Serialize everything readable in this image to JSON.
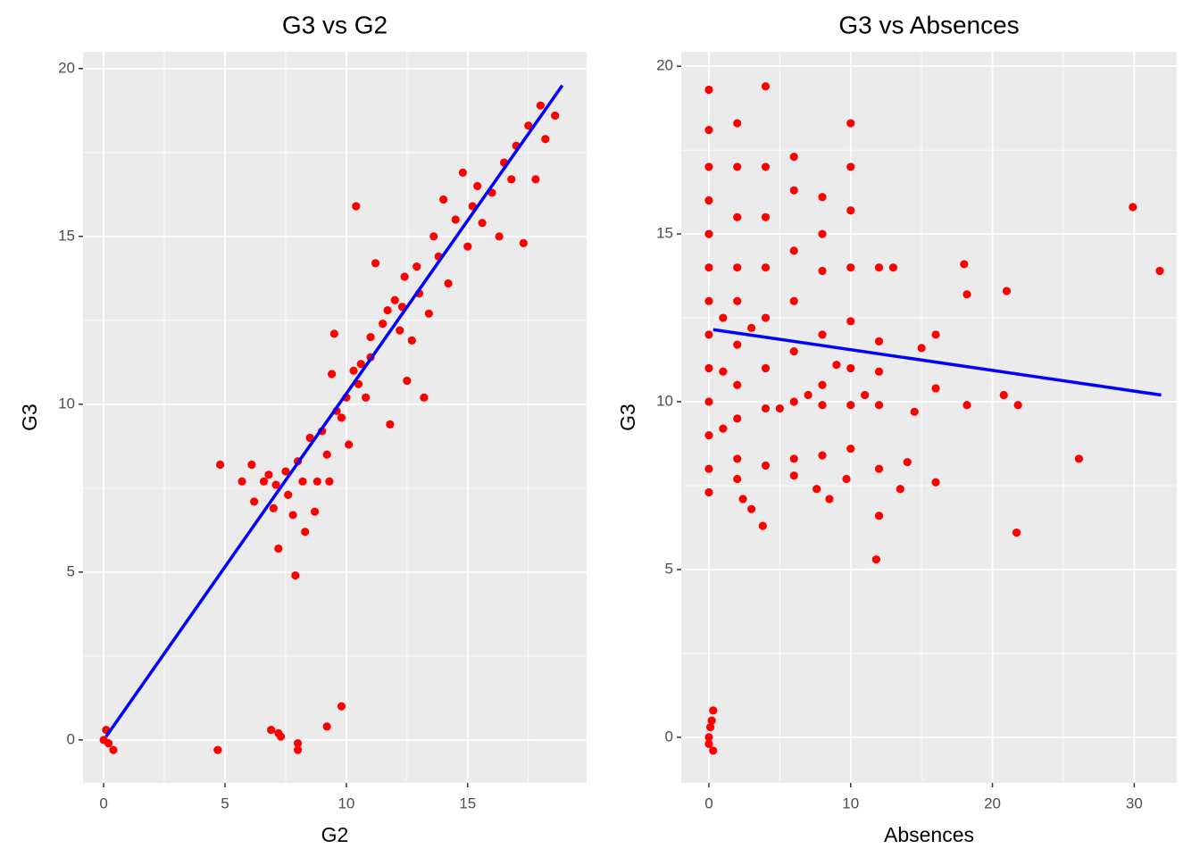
{
  "chart_data": [
    {
      "type": "scatter",
      "title": "G3 vs G2",
      "x_label": "G2",
      "y_label": "G3",
      "xlim": [
        -0.85,
        19.9
      ],
      "ylim": [
        -1.28,
        20.5
      ],
      "xticks": [
        0,
        5,
        10,
        15
      ],
      "yticks": [
        0,
        5,
        10,
        15,
        20
      ],
      "x_minor_ticks": [
        2.5,
        7.5,
        12.5,
        17.5
      ],
      "y_minor_ticks": [
        2.5,
        7.5,
        12.5,
        17.5
      ],
      "grid": true,
      "series": [
        {
          "color": "#ff0000",
          "x": [
            0,
            0.1,
            0.2,
            0.4,
            4.7,
            6.9,
            7.2,
            7.3,
            8,
            8,
            9.2,
            9.8,
            4.8,
            5.7,
            6.1,
            6.2,
            6.8,
            7,
            7.1,
            7.2,
            7.6,
            7.8,
            7.9,
            7.5,
            8,
            8.2,
            8.3,
            8.5,
            8.7,
            8.8,
            9,
            9.2,
            9.3,
            9.4,
            9.5,
            9.6,
            9.8,
            10,
            10.1,
            10.3,
            10.4,
            10.5,
            10.8,
            11,
            11,
            11.2,
            11.5,
            11.8,
            12,
            12.2,
            12.4,
            12.5,
            12.7,
            12.9,
            13,
            13.2,
            13.4,
            13.6,
            13.8,
            14,
            14.2,
            14.5,
            14.8,
            15,
            15.2,
            15.4,
            15.6,
            16,
            16.3,
            16.5,
            16.8,
            17,
            17.3,
            17.5,
            17.8,
            18,
            18.2,
            18.6,
            6.6,
            10.6,
            11.7,
            12.3
          ],
          "values": [
            0,
            0.3,
            -0.1,
            -0.3,
            -0.3,
            0.3,
            0.2,
            0.1,
            -0.1,
            -0.3,
            0.4,
            1,
            8.2,
            7.7,
            8.2,
            7.1,
            7.9,
            6.9,
            7.6,
            5.7,
            7.3,
            6.7,
            4.9,
            8,
            8.3,
            7.7,
            6.2,
            9,
            6.8,
            7.7,
            9.2,
            8.5,
            7.7,
            10.9,
            12.1,
            9.8,
            9.6,
            10.2,
            8.8,
            11,
            15.9,
            10.6,
            10.2,
            11.4,
            12,
            14.2,
            12.4,
            9.4,
            13.1,
            12.2,
            13.8,
            10.7,
            11.9,
            14.1,
            13.3,
            10.2,
            12.7,
            15,
            14.4,
            16.1,
            13.6,
            15.5,
            16.9,
            14.7,
            15.9,
            16.5,
            15.4,
            16.3,
            15,
            17.2,
            16.7,
            17.7,
            14.8,
            18.3,
            16.7,
            18.9,
            17.9,
            18.6,
            7.7,
            11.2,
            12.8,
            12.9
          ]
        },
        {
          "type": "line",
          "color": "#0000ff",
          "x": [
            0.1,
            18.9
          ],
          "values": [
            0.1,
            19.5
          ]
        }
      ]
    },
    {
      "type": "scatter",
      "title": "G3 vs Absences",
      "x_label": "Absences",
      "y_label": "G3",
      "xlim": [
        -1.95,
        33.0
      ],
      "ylim": [
        -1.36,
        20.43
      ],
      "xticks": [
        0,
        10,
        20,
        30
      ],
      "yticks": [
        0,
        5,
        10,
        15,
        20
      ],
      "x_minor_ticks": [
        5,
        15,
        25
      ],
      "y_minor_ticks": [
        2.5,
        7.5,
        12.5,
        17.5
      ],
      "grid": true,
      "series": [
        {
          "color": "#ff0000",
          "x": [
            0,
            0,
            0,
            0,
            0,
            0,
            0,
            0,
            0,
            0,
            0,
            0,
            0,
            0,
            0,
            0.2,
            0.3,
            0.3,
            0.1,
            2,
            2,
            2,
            2,
            2,
            2,
            2,
            2,
            2,
            2,
            2.4,
            3,
            4,
            4,
            4,
            4,
            4,
            4,
            4,
            4,
            3.8,
            6,
            6,
            6,
            6,
            6,
            6,
            6,
            6,
            8,
            8,
            8,
            8,
            8,
            8,
            8,
            7.6,
            8.5,
            10,
            10,
            10,
            10,
            10,
            10,
            10,
            10,
            9.7,
            12,
            12,
            12,
            12,
            12,
            12,
            11.8,
            13,
            14,
            13.5,
            14.5,
            15,
            16,
            16,
            16,
            18,
            18.2,
            18.2,
            21,
            20.8,
            21.8,
            21.7,
            26.1,
            29.9,
            31.8,
            1,
            1,
            1,
            3,
            5,
            7,
            9,
            11
          ],
          "values": [
            19.3,
            18.1,
            17,
            16,
            15,
            14,
            13,
            12,
            11,
            10,
            9,
            8,
            7.3,
            0,
            -0.2,
            0.5,
            0.8,
            -0.4,
            0.3,
            18.3,
            17,
            15.5,
            14,
            13,
            11.7,
            10.5,
            9.5,
            8.3,
            7.7,
            7.1,
            6.8,
            19.4,
            17,
            15.5,
            14,
            12.5,
            11,
            9.8,
            8.1,
            6.3,
            17.3,
            16.3,
            14.5,
            13,
            11.5,
            10,
            8.3,
            7.8,
            16.1,
            15,
            13.9,
            12,
            10.5,
            9.9,
            8.4,
            7.4,
            7.1,
            18.3,
            17,
            15.7,
            14,
            12.4,
            11,
            9.9,
            8.6,
            7.7,
            14,
            11.8,
            10.9,
            9.9,
            8,
            6.6,
            5.3,
            14,
            8.2,
            7.4,
            9.7,
            11.6,
            12,
            10.4,
            7.6,
            14.1,
            13.2,
            9.9,
            13.3,
            10.2,
            9.9,
            6.1,
            8.3,
            15.8,
            13.9,
            12.5,
            10.9,
            9.2,
            12.2,
            9.8,
            10.2,
            11.1,
            10.2
          ]
        },
        {
          "type": "line",
          "color": "#0000ff",
          "x": [
            0.3,
            31.9
          ],
          "values": [
            12.15,
            10.2
          ]
        }
      ]
    }
  ]
}
